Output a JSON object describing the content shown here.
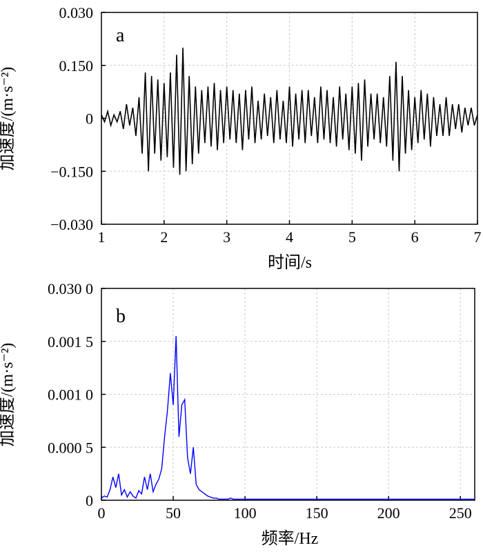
{
  "chart_data": [
    {
      "panel": "a",
      "type": "line",
      "xlabel": "时间/s",
      "ylabel": "加速度/(m·s⁻²)",
      "xlim": [
        1,
        7
      ],
      "ylim": [
        -0.3,
        0.3
      ],
      "x_ticks": [
        "1",
        "2",
        "3",
        "4",
        "5",
        "6",
        "7"
      ],
      "y_ticks": [
        "0.030",
        "0.150",
        "0",
        "−0.150",
        "−0.030"
      ],
      "grid": true,
      "series": [
        {
          "color": "#000000",
          "x": [
            1.0,
            1.05,
            1.1,
            1.15,
            1.2,
            1.25,
            1.3,
            1.35,
            1.4,
            1.45,
            1.5,
            1.55,
            1.6,
            1.65,
            1.7,
            1.75,
            1.8,
            1.85,
            1.9,
            1.95,
            2.0,
            2.05,
            2.1,
            2.15,
            2.2,
            2.25,
            2.3,
            2.35,
            2.4,
            2.45,
            2.5,
            2.55,
            2.6,
            2.65,
            2.7,
            2.75,
            2.8,
            2.85,
            2.9,
            2.95,
            3.0,
            3.05,
            3.1,
            3.15,
            3.2,
            3.25,
            3.3,
            3.35,
            3.4,
            3.45,
            3.5,
            3.55,
            3.6,
            3.65,
            3.7,
            3.75,
            3.8,
            3.85,
            3.9,
            3.95,
            4.0,
            4.05,
            4.1,
            4.15,
            4.2,
            4.25,
            4.3,
            4.35,
            4.4,
            4.45,
            4.5,
            4.55,
            4.6,
            4.65,
            4.7,
            4.75,
            4.8,
            4.85,
            4.9,
            4.95,
            5.0,
            5.05,
            5.1,
            5.15,
            5.2,
            5.25,
            5.3,
            5.35,
            5.4,
            5.45,
            5.5,
            5.55,
            5.6,
            5.65,
            5.7,
            5.75,
            5.8,
            5.85,
            5.9,
            5.95,
            6.0,
            6.05,
            6.1,
            6.15,
            6.2,
            6.25,
            6.3,
            6.35,
            6.4,
            6.45,
            6.5,
            6.55,
            6.6,
            6.65,
            6.7,
            6.75,
            6.8,
            6.85,
            6.9,
            6.95,
            7.0
          ],
          "y": [
            0.01,
            -0.01,
            0.02,
            -0.02,
            0.01,
            -0.01,
            0.02,
            -0.03,
            0.04,
            -0.02,
            0.03,
            -0.05,
            0.06,
            -0.1,
            0.13,
            -0.15,
            0.12,
            -0.1,
            0.11,
            -0.12,
            0.1,
            -0.11,
            0.13,
            -0.14,
            0.18,
            -0.16,
            0.2,
            -0.15,
            0.12,
            -0.13,
            0.09,
            -0.1,
            0.08,
            -0.07,
            0.09,
            -0.08,
            0.1,
            -0.09,
            0.08,
            -0.07,
            0.09,
            -0.06,
            0.08,
            -0.07,
            0.07,
            -0.09,
            0.08,
            -0.06,
            0.09,
            -0.07,
            0.05,
            -0.06,
            0.07,
            -0.05,
            0.06,
            -0.07,
            0.08,
            -0.06,
            0.05,
            -0.07,
            0.09,
            -0.08,
            0.07,
            -0.06,
            0.08,
            -0.07,
            0.08,
            -0.05,
            0.06,
            -0.07,
            0.09,
            -0.06,
            0.08,
            -0.07,
            0.06,
            -0.08,
            0.09,
            -0.06,
            0.07,
            -0.09,
            0.09,
            -0.1,
            0.1,
            -0.12,
            0.11,
            -0.08,
            0.07,
            -0.06,
            0.07,
            -0.07,
            0.06,
            -0.08,
            0.12,
            -0.12,
            0.16,
            -0.15,
            0.12,
            -0.1,
            0.08,
            -0.09,
            0.06,
            -0.07,
            0.08,
            -0.06,
            0.07,
            -0.08,
            0.06,
            -0.05,
            0.04,
            -0.05,
            0.06,
            -0.05,
            0.04,
            -0.03,
            0.04,
            -0.04,
            0.03,
            -0.02,
            0.03,
            -0.02,
            0.01
          ]
        }
      ]
    },
    {
      "panel": "b",
      "type": "line",
      "xlabel": "频率/Hz",
      "ylabel": "加速度/(m·s⁻²)",
      "xlim": [
        0,
        260
      ],
      "ylim": [
        0,
        0.002
      ],
      "x_ticks": [
        "0",
        "50",
        "100",
        "150",
        "200",
        "250"
      ],
      "y_ticks": [
        "0.030 0",
        "0.001 5",
        "0.001 0",
        "0.000 5",
        "0"
      ],
      "grid": true,
      "series": [
        {
          "color": "#0000ff",
          "x": [
            0,
            2,
            4,
            6,
            8,
            10,
            12,
            14,
            16,
            18,
            20,
            22,
            24,
            26,
            28,
            30,
            32,
            34,
            36,
            38,
            40,
            42,
            44,
            46,
            48,
            50,
            52,
            54,
            56,
            58,
            60,
            62,
            64,
            66,
            68,
            70,
            72,
            74,
            76,
            78,
            80,
            82,
            84,
            86,
            88,
            90,
            92,
            94,
            96,
            98,
            100,
            110,
            120,
            130,
            140,
            150,
            160,
            170,
            180,
            190,
            200,
            210,
            220,
            230,
            240,
            250,
            260
          ],
          "y": [
            2e-05,
            4e-05,
            3e-05,
            0.0001,
            0.00022,
            0.00012,
            0.00025,
            5e-05,
            0.0001,
            3e-05,
            8e-05,
            4e-05,
            2e-05,
            9e-05,
            6e-05,
            0.00022,
            0.0001,
            0.00025,
            8e-05,
            0.00015,
            0.0002,
            0.0003,
            0.0006,
            0.00085,
            0.0012,
            0.0009,
            0.00155,
            0.0006,
            0.0009,
            0.00095,
            0.0004,
            0.00025,
            0.0005,
            0.00015,
            0.0001,
            8e-05,
            6e-05,
            4e-05,
            3e-05,
            2e-05,
            2e-05,
            1e-05,
            1e-05,
            1e-05,
            1e-05,
            2e-05,
            1e-05,
            1e-05,
            1e-05,
            1e-05,
            1e-05,
            1e-05,
            1e-05,
            1e-05,
            1e-05,
            1e-05,
            1e-05,
            1e-05,
            1e-05,
            1e-05,
            1e-05,
            1e-05,
            1e-05,
            1e-05,
            1e-05,
            1e-05,
            1e-05
          ]
        }
      ]
    }
  ],
  "panels": {
    "a": {
      "label": "a"
    },
    "b": {
      "label": "b"
    }
  }
}
